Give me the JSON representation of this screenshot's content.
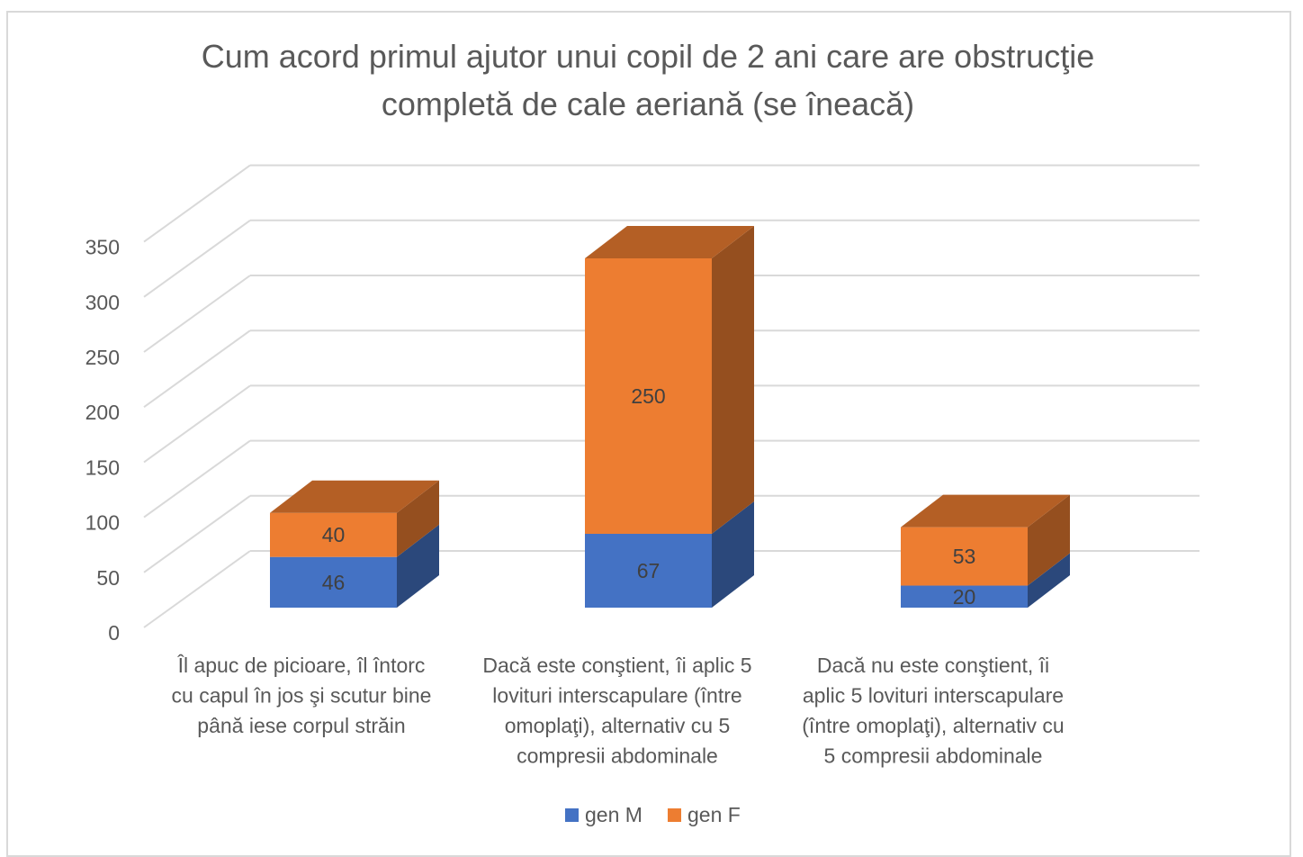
{
  "chart_data": {
    "type": "bar",
    "stacked": true,
    "style": "3d-column",
    "title": "Cum acord primul ajutor unui copil de 2 ani care are obstrucţie completă de cale aeriană (se îneacă)",
    "title_lines": [
      "Cum acord primul ajutor unui copil de 2 ani care are obstrucţie",
      "completă de cale aeriană (se îneacă)"
    ],
    "categories": [
      [
        "Îl apuc de picioare, îl întorc",
        "cu capul în jos şi scutur bine",
        "până iese corpul străin"
      ],
      [
        "Dacă este conştient, îi aplic 5",
        "lovituri interscapulare (între",
        "omoplaţi), alternativ cu 5",
        "compresii abdominale"
      ],
      [
        "Dacă nu este conştient, îi",
        "aplic 5 lovituri interscapulare",
        "(între omoplaţi), alternativ cu",
        "5 compresii abdominale"
      ]
    ],
    "series": [
      {
        "name": "gen M",
        "values": [
          46,
          67,
          20
        ],
        "color": "#4472C4"
      },
      {
        "name": "gen F",
        "values": [
          40,
          250,
          53
        ],
        "color": "#ED7D31"
      }
    ],
    "ylim": [
      0,
      350
    ],
    "yticks": [
      0,
      50,
      100,
      150,
      200,
      250,
      300,
      350
    ],
    "grid": true,
    "legend": "bottom",
    "data_labels": true
  }
}
